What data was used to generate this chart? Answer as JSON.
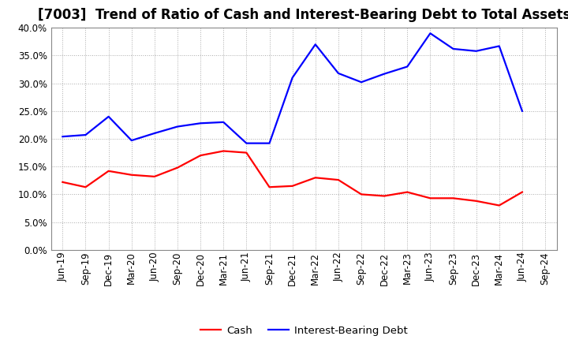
{
  "title": "[7003]  Trend of Ratio of Cash and Interest-Bearing Debt to Total Assets",
  "x_labels": [
    "Jun-19",
    "Sep-19",
    "Dec-19",
    "Mar-20",
    "Jun-20",
    "Sep-20",
    "Dec-20",
    "Mar-21",
    "Jun-21",
    "Sep-21",
    "Dec-21",
    "Mar-22",
    "Jun-22",
    "Sep-22",
    "Dec-22",
    "Mar-23",
    "Jun-23",
    "Sep-23",
    "Dec-23",
    "Mar-24",
    "Jun-24",
    "Sep-24"
  ],
  "cash": [
    0.122,
    0.113,
    0.142,
    0.135,
    0.132,
    0.148,
    0.17,
    0.178,
    0.175,
    0.113,
    0.115,
    0.13,
    0.126,
    0.1,
    0.097,
    0.104,
    0.093,
    0.093,
    0.088,
    0.08,
    0.104,
    null
  ],
  "interest_bearing_debt": [
    0.204,
    0.207,
    0.24,
    0.197,
    0.21,
    0.222,
    0.228,
    0.23,
    0.192,
    0.192,
    0.31,
    0.37,
    0.318,
    0.302,
    0.317,
    0.33,
    0.39,
    0.362,
    0.358,
    0.367,
    0.25,
    null
  ],
  "cash_color": "#FF0000",
  "debt_color": "#0000FF",
  "background_color": "#FFFFFF",
  "plot_bg_color": "#FFFFFF",
  "ylim": [
    0.0,
    0.4
  ],
  "yticks": [
    0.0,
    0.05,
    0.1,
    0.15,
    0.2,
    0.25,
    0.3,
    0.35,
    0.4
  ],
  "legend_cash": "Cash",
  "legend_debt": "Interest-Bearing Debt",
  "title_fontsize": 12,
  "axis_fontsize": 8.5,
  "legend_fontsize": 9.5,
  "line_width": 1.6,
  "grid_color": "#AAAAAA",
  "grid_linestyle": ":",
  "grid_linewidth": 0.7
}
